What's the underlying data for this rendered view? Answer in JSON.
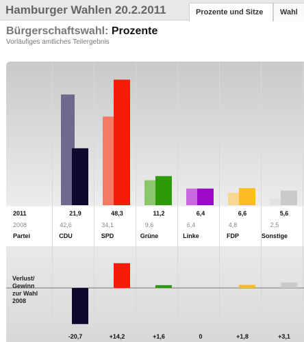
{
  "header": {
    "title": "Hamburger Wahlen 20.2.2011",
    "tabs": [
      {
        "label": "Prozente und Sitze",
        "active": true
      },
      {
        "label": "Wahl",
        "active": false
      }
    ]
  },
  "page": {
    "title_prefix": "Bürgerschaftswahl:",
    "title_main": "Prozente",
    "subtitle": "Vorläufiges amtliches Teilergebnis"
  },
  "table": {
    "row_2011": "2011",
    "row_2008": "2008",
    "row_partei": "Partei",
    "verlust_label": [
      "Verlust/",
      "Gewinn",
      "zur Wahl",
      "2008"
    ]
  },
  "chart_data": {
    "type": "bar",
    "categories": [
      "CDU",
      "SPD",
      "Grüne",
      "Linke",
      "FDP",
      "Sonstige"
    ],
    "series": [
      {
        "name": "2008",
        "values": [
          42.6,
          34.1,
          9.6,
          6.4,
          4.8,
          2.5
        ]
      },
      {
        "name": "2011",
        "values": [
          21.9,
          48.3,
          11.2,
          6.4,
          6.6,
          5.6
        ]
      }
    ],
    "change": [
      -20.7,
      14.2,
      1.6,
      0,
      1.8,
      3.1
    ],
    "labels_2011": [
      "21,9",
      "48,3",
      "11,2",
      "6,4",
      "6,6",
      "5,6"
    ],
    "labels_2008": [
      "42,6",
      "34,1",
      "9,6",
      "6,4",
      "4,8",
      "2,5"
    ],
    "labels_change": [
      "-20,7",
      "+14,2",
      "+1,6",
      "0",
      "+1,8",
      "+3,1"
    ],
    "colors_2011": [
      "#0e0a2e",
      "#f41d07",
      "#2e9a0a",
      "#9a0ac8",
      "#fbbd22",
      "#c9c9c9"
    ],
    "colors_2008": [
      "#6e6a8e",
      "#f47a64",
      "#8cc66a",
      "#c96ae0",
      "#f8d890",
      "#e2e2e2"
    ],
    "ylim": [
      0,
      50
    ]
  }
}
